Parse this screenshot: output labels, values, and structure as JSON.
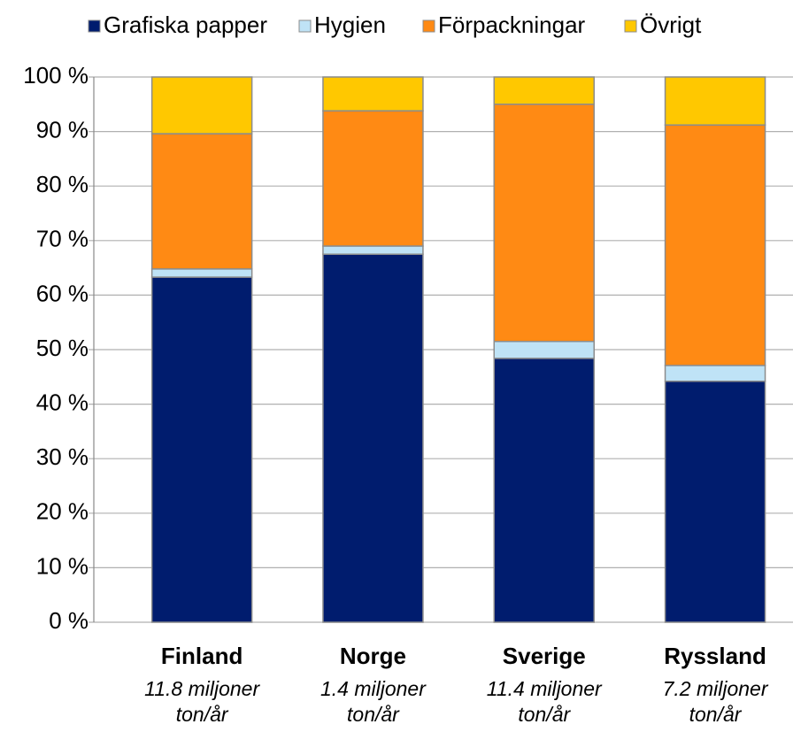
{
  "chart_data": {
    "type": "stacked_bar",
    "categories": [
      "Finland",
      "Norge",
      "Sverige",
      "Ryssland"
    ],
    "category_sublabels": [
      [
        "11.8 miljoner",
        "ton/år"
      ],
      [
        "1.4 miljoner",
        "ton/år"
      ],
      [
        "11.4 miljoner",
        "ton/år"
      ],
      [
        "7.2 miljoner",
        "ton/år"
      ]
    ],
    "series": [
      {
        "name": "Grafiska papper",
        "color": "#001c6e",
        "values": [
          63.3,
          67.5,
          48.4,
          44.2
        ]
      },
      {
        "name": "Hygien",
        "color": "#bfe3f6",
        "values": [
          1.5,
          1.5,
          3.1,
          2.9
        ]
      },
      {
        "name": "Förpackningar",
        "color": "#ff8a14",
        "values": [
          24.8,
          24.8,
          43.5,
          44.1
        ]
      },
      {
        "name": "Övrigt",
        "color": "#ffc800",
        "values": [
          10.4,
          6.2,
          5.0,
          8.8
        ]
      }
    ],
    "ylim": [
      0,
      100
    ],
    "yticks": [
      {
        "value": 0,
        "label": "0 %"
      },
      {
        "value": 10,
        "label": "10 %"
      },
      {
        "value": 20,
        "label": "20 %"
      },
      {
        "value": 30,
        "label": "30 %"
      },
      {
        "value": 40,
        "label": "40 %"
      },
      {
        "value": 50,
        "label": "50 %"
      },
      {
        "value": 60,
        "label": "60 %"
      },
      {
        "value": 70,
        "label": "70 %"
      },
      {
        "value": 80,
        "label": "80 %"
      },
      {
        "value": 90,
        "label": "90 %"
      },
      {
        "value": 100,
        "label": "100 %"
      }
    ],
    "grid": true,
    "legend": "top"
  }
}
